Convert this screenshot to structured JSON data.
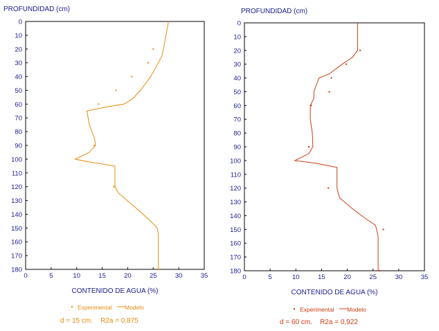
{
  "chart_data": [
    {
      "type": "line",
      "ylabel": "PROFUNDIDAD (cm)",
      "xlabel": "CONTENIDO DE AGUA (%)",
      "xlim": [
        0,
        35
      ],
      "ylim": [
        0,
        180
      ],
      "y_inverted": true,
      "x_ticks": [
        "0",
        "5",
        "10",
        "15",
        "20",
        "25",
        "30",
        "35"
      ],
      "y_ticks": [
        "0",
        "10",
        "20",
        "30",
        "40",
        "50",
        "60",
        "70",
        "80",
        "90",
        "100",
        "110",
        "120",
        "130",
        "140",
        "150",
        "160",
        "170",
        "180"
      ],
      "grid": false,
      "series": [
        {
          "name": "Experimental",
          "kind": "scatter",
          "points": [
            [
              25.0,
              20
            ],
            [
              24.0,
              30
            ],
            [
              20.8,
              40
            ],
            [
              17.7,
              50
            ],
            [
              14.3,
              60
            ],
            [
              13.5,
              90
            ],
            [
              17.3,
              120
            ],
            [
              26.0,
              180
            ]
          ]
        },
        {
          "name": "Modelo",
          "kind": "line",
          "points": [
            [
              28.0,
              0
            ],
            [
              27.5,
              10
            ],
            [
              27.0,
              20
            ],
            [
              26.7,
              25
            ],
            [
              26.0,
              30
            ],
            [
              24.5,
              40
            ],
            [
              22.5,
              50
            ],
            [
              21.0,
              56
            ],
            [
              19.3,
              60
            ],
            [
              16.0,
              62
            ],
            [
              12.0,
              65
            ],
            [
              12.5,
              75
            ],
            [
              13.5,
              85
            ],
            [
              13.7,
              90
            ],
            [
              12.5,
              95
            ],
            [
              9.7,
              100
            ],
            [
              12.5,
              102
            ],
            [
              17.5,
              105
            ],
            [
              17.5,
              120
            ],
            [
              18.3,
              125
            ],
            [
              21.5,
              135
            ],
            [
              24.5,
              145
            ],
            [
              25.8,
              150
            ],
            [
              26.0,
              155
            ],
            [
              26.0,
              180
            ]
          ]
        }
      ],
      "legend": [
        "Experimental",
        "Modelo"
      ],
      "annotation": "d = 15 cm.    R2a = 0,875",
      "color": "#e8890b"
    },
    {
      "type": "line",
      "ylabel": "PROFUNDIDAD (cm)",
      "xlabel": "CONTENIDO DE AGUA (%)",
      "xlim": [
        0,
        35
      ],
      "ylim": [
        0,
        180
      ],
      "y_inverted": true,
      "x_ticks": [
        "0",
        "5",
        "10",
        "15",
        "20",
        "25",
        "30",
        "35"
      ],
      "y_ticks": [
        "0",
        "10",
        "20",
        "30",
        "40",
        "50",
        "60",
        "70",
        "80",
        "90",
        "100",
        "110",
        "120",
        "130",
        "140",
        "150",
        "160",
        "170",
        "180"
      ],
      "grid": false,
      "series": [
        {
          "name": "Experimental",
          "kind": "scatter",
          "points": [
            [
              22.5,
              20
            ],
            [
              19.8,
              30
            ],
            [
              16.9,
              40
            ],
            [
              16.5,
              50
            ],
            [
              13.0,
              60
            ],
            [
              12.5,
              90
            ],
            [
              16.3,
              120
            ],
            [
              27.0,
              150
            ],
            [
              26.2,
              180
            ]
          ]
        },
        {
          "name": "Modelo",
          "kind": "line",
          "points": [
            [
              22.0,
              0
            ],
            [
              22.0,
              10
            ],
            [
              22.0,
              20
            ],
            [
              21.0,
              25
            ],
            [
              19.0,
              30
            ],
            [
              16.5,
              37
            ],
            [
              14.5,
              40
            ],
            [
              14.0,
              45
            ],
            [
              13.5,
              50
            ],
            [
              13.5,
              55
            ],
            [
              12.8,
              60
            ],
            [
              12.8,
              70
            ],
            [
              13.2,
              80
            ],
            [
              13.3,
              90
            ],
            [
              12.5,
              95
            ],
            [
              9.8,
              100
            ],
            [
              14.0,
              102
            ],
            [
              18.0,
              105
            ],
            [
              18.0,
              120
            ],
            [
              18.5,
              127
            ],
            [
              21.0,
              135
            ],
            [
              23.5,
              142
            ],
            [
              25.5,
              147
            ],
            [
              26.0,
              155
            ],
            [
              26.0,
              180
            ]
          ]
        }
      ],
      "legend": [
        "Experimental",
        "Modelo"
      ],
      "annotation": "d = 60 cm.    R2a = 0,922",
      "color": "#cc3b12"
    }
  ]
}
